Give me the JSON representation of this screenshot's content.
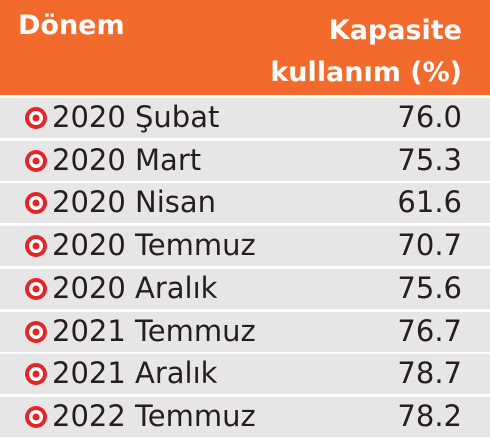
{
  "table": {
    "header": [
      "Dönem",
      [
        "Kapasite",
        "kullanım (%)"
      ]
    ],
    "rows": [
      [
        "2020 Şubat",
        "76.0"
      ],
      [
        "2020 Mart",
        "75.3"
      ],
      [
        "2020 Nisan",
        "61.6"
      ],
      [
        "2020 Temmuz",
        "70.7"
      ],
      [
        "2020 Aralık",
        "75.6"
      ],
      [
        "2021 Temmuz",
        "76.7"
      ],
      [
        "2021 Aralık",
        "78.7"
      ],
      [
        "2022 Temmuz",
        "78.2"
      ]
    ]
  }
}
